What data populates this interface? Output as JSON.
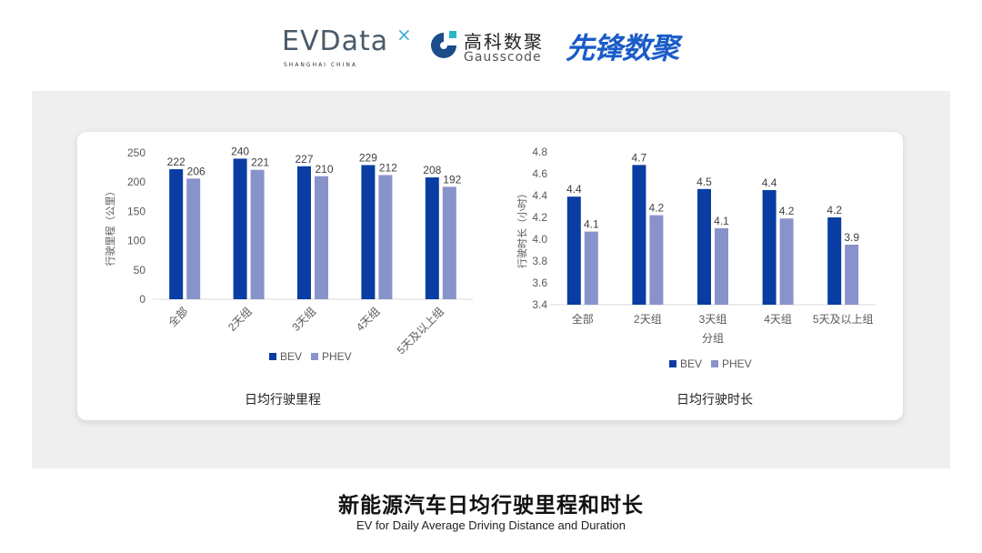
{
  "logos": {
    "evdata": {
      "text": "EVData",
      "sub": "SHANGHAI CHINA"
    },
    "gausscode": {
      "cn": "高科数聚",
      "en": "Gausscode"
    },
    "xianfeng": {
      "text": "先锋数聚"
    }
  },
  "colors": {
    "bev": "#0a3da3",
    "phev": "#8893cc",
    "background_panel": "#efefef"
  },
  "chart_data": [
    {
      "type": "bar",
      "title": "日均行驶里程",
      "categories": [
        "全部",
        "2天组",
        "3天组",
        "4天组",
        "5天及以上组"
      ],
      "series": [
        {
          "name": "BEV",
          "values": [
            222,
            240,
            227,
            229,
            208
          ],
          "color": "#0a3da3"
        },
        {
          "name": "PHEV",
          "values": [
            206,
            221,
            210,
            212,
            192
          ],
          "color": "#8893cc"
        }
      ],
      "xlabel": "",
      "ylabel": "行驶里程（公里）",
      "ylim": [
        0,
        250
      ],
      "yticks": [
        0,
        50,
        100,
        150,
        200,
        250
      ],
      "grid": false,
      "legend": "bottom",
      "data_labels": true
    },
    {
      "type": "bar",
      "title": "日均行驶时长",
      "categories": [
        "全部",
        "2天组",
        "3天组",
        "4天组",
        "5天及以上组"
      ],
      "series": [
        {
          "name": "BEV",
          "values": [
            4.39,
            4.68,
            4.46,
            4.45,
            4.2
          ],
          "labels": [
            "4.4",
            "4.7",
            "4.5",
            "4.4",
            "4.2"
          ],
          "color": "#0a3da3"
        },
        {
          "name": "PHEV",
          "values": [
            4.07,
            4.22,
            4.1,
            4.19,
            3.95
          ],
          "labels": [
            "4.1",
            "4.2",
            "4.1",
            "4.2",
            "3.9"
          ],
          "color": "#8893cc"
        }
      ],
      "xlabel": "分组",
      "ylabel": "行驶时长（小时）",
      "ylim": [
        3.4,
        4.8
      ],
      "yticks": [
        "3.4",
        "3.6",
        "3.8",
        "4.0",
        "4.2",
        "4.4",
        "4.6",
        "4.8"
      ],
      "grid": false,
      "legend": "bottom",
      "data_labels": true
    }
  ],
  "footer": {
    "title": "新能源汽车日均行驶里程和时长",
    "subtitle": "EV for Daily Average Driving Distance and Duration"
  }
}
